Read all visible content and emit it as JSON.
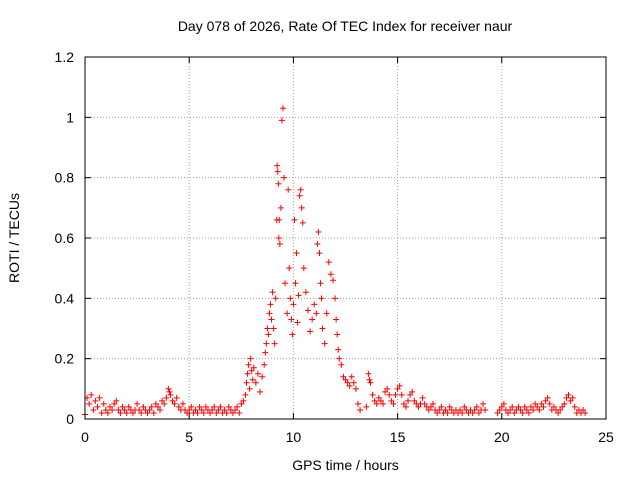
{
  "chart_data": {
    "type": "scatter",
    "title": "Day 078 of 2026, Rate Of TEC Index for receiver naur",
    "xlabel": "GPS time / hours",
    "ylabel": "ROTI / TECUs",
    "xlim": [
      0,
      25
    ],
    "ylim": [
      0,
      1.2
    ],
    "xticks": [
      0,
      5,
      10,
      15,
      20,
      25
    ],
    "yticks": [
      0,
      0.2,
      0.4,
      0.6,
      0.8,
      1,
      1.2
    ],
    "grid": true,
    "marker": "+",
    "color": "#ff0000",
    "series": [
      {
        "values": [
          [
            0.0,
            0.015
          ],
          [
            0.1,
            0.07
          ],
          [
            0.2,
            0.05
          ],
          [
            0.3,
            0.08
          ],
          [
            0.4,
            0.03
          ],
          [
            0.5,
            0.06
          ],
          [
            0.6,
            0.04
          ],
          [
            0.7,
            0.07
          ],
          [
            0.8,
            0.02
          ],
          [
            0.9,
            0.05
          ],
          [
            1.0,
            0.03
          ],
          [
            1.1,
            0.02
          ],
          [
            1.2,
            0.04
          ],
          [
            1.3,
            0.03
          ],
          [
            1.4,
            0.05
          ],
          [
            1.5,
            0.06
          ],
          [
            1.6,
            0.03
          ],
          [
            1.7,
            0.02
          ],
          [
            1.8,
            0.04
          ],
          [
            1.9,
            0.03
          ],
          [
            2.0,
            0.02
          ],
          [
            2.1,
            0.04
          ],
          [
            2.2,
            0.03
          ],
          [
            2.3,
            0.02
          ],
          [
            2.4,
            0.03
          ],
          [
            2.5,
            0.05
          ],
          [
            2.6,
            0.03
          ],
          [
            2.7,
            0.02
          ],
          [
            2.8,
            0.04
          ],
          [
            2.9,
            0.03
          ],
          [
            3.0,
            0.02
          ],
          [
            3.1,
            0.03
          ],
          [
            3.2,
            0.04
          ],
          [
            3.3,
            0.02
          ],
          [
            3.4,
            0.05
          ],
          [
            3.5,
            0.04
          ],
          [
            3.6,
            0.03
          ],
          [
            3.7,
            0.06
          ],
          [
            3.8,
            0.05
          ],
          [
            3.9,
            0.07
          ],
          [
            4.0,
            0.1
          ],
          [
            4.05,
            0.09
          ],
          [
            4.1,
            0.08
          ],
          [
            4.2,
            0.06
          ],
          [
            4.3,
            0.05
          ],
          [
            4.4,
            0.07
          ],
          [
            4.5,
            0.04
          ],
          [
            4.6,
            0.03
          ],
          [
            4.7,
            0.05
          ],
          [
            4.8,
            0.03
          ],
          [
            4.9,
            0.02
          ],
          [
            5.0,
            0.03
          ],
          [
            5.1,
            0.04
          ],
          [
            5.2,
            0.02
          ],
          [
            5.3,
            0.03
          ],
          [
            5.4,
            0.02
          ],
          [
            5.5,
            0.04
          ],
          [
            5.6,
            0.03
          ],
          [
            5.7,
            0.02
          ],
          [
            5.8,
            0.04
          ],
          [
            5.9,
            0.03
          ],
          [
            6.0,
            0.02
          ],
          [
            6.1,
            0.03
          ],
          [
            6.2,
            0.04
          ],
          [
            6.3,
            0.02
          ],
          [
            6.4,
            0.03
          ],
          [
            6.5,
            0.04
          ],
          [
            6.6,
            0.02
          ],
          [
            6.7,
            0.03
          ],
          [
            6.8,
            0.02
          ],
          [
            6.9,
            0.04
          ],
          [
            7.0,
            0.03
          ],
          [
            7.1,
            0.02
          ],
          [
            7.2,
            0.03
          ],
          [
            7.3,
            0.04
          ],
          [
            7.4,
            0.02
          ],
          [
            7.5,
            0.05
          ],
          [
            7.6,
            0.06
          ],
          [
            7.7,
            0.08
          ],
          [
            7.75,
            0.12
          ],
          [
            7.8,
            0.15
          ],
          [
            7.85,
            0.18
          ],
          [
            7.9,
            0.1
          ],
          [
            7.95,
            0.2
          ],
          [
            8.0,
            0.16
          ],
          [
            8.05,
            0.13
          ],
          [
            8.1,
            0.17
          ],
          [
            8.2,
            0.12
          ],
          [
            8.3,
            0.15
          ],
          [
            8.4,
            0.09
          ],
          [
            8.5,
            0.14
          ],
          [
            8.6,
            0.18
          ],
          [
            8.65,
            0.22
          ],
          [
            8.7,
            0.25
          ],
          [
            8.75,
            0.3
          ],
          [
            8.8,
            0.28
          ],
          [
            8.85,
            0.35
          ],
          [
            8.9,
            0.38
          ],
          [
            8.95,
            0.33
          ],
          [
            9.0,
            0.42
          ],
          [
            9.05,
            0.3
          ],
          [
            9.1,
            0.25
          ],
          [
            9.15,
            0.4
          ],
          [
            9.2,
            0.66
          ],
          [
            9.22,
            0.84
          ],
          [
            9.25,
            0.82
          ],
          [
            9.28,
            0.78
          ],
          [
            9.3,
            0.6
          ],
          [
            9.32,
            0.66
          ],
          [
            9.35,
            0.58
          ],
          [
            9.4,
            0.7
          ],
          [
            9.45,
            0.99
          ],
          [
            9.5,
            1.03
          ],
          [
            9.55,
            0.8
          ],
          [
            9.6,
            0.45
          ],
          [
            9.7,
            0.35
          ],
          [
            9.75,
            0.76
          ],
          [
            9.8,
            0.5
          ],
          [
            9.85,
            0.4
          ],
          [
            9.9,
            0.33
          ],
          [
            9.95,
            0.28
          ],
          [
            10.0,
            0.38
          ],
          [
            10.05,
            0.66
          ],
          [
            10.1,
            0.45
          ],
          [
            10.15,
            0.55
          ],
          [
            10.2,
            0.32
          ],
          [
            10.25,
            0.41
          ],
          [
            10.3,
            0.74
          ],
          [
            10.35,
            0.76
          ],
          [
            10.4,
            0.7
          ],
          [
            10.45,
            0.65
          ],
          [
            10.5,
            0.5
          ],
          [
            10.6,
            0.42
          ],
          [
            10.7,
            0.36
          ],
          [
            10.8,
            0.29
          ],
          [
            10.9,
            0.33
          ],
          [
            11.0,
            0.38
          ],
          [
            11.1,
            0.35
          ],
          [
            11.15,
            0.58
          ],
          [
            11.2,
            0.62
          ],
          [
            11.25,
            0.55
          ],
          [
            11.3,
            0.45
          ],
          [
            11.35,
            0.4
          ],
          [
            11.4,
            0.3
          ],
          [
            11.5,
            0.25
          ],
          [
            11.6,
            0.35
          ],
          [
            11.7,
            0.52
          ],
          [
            11.8,
            0.48
          ],
          [
            11.9,
            0.46
          ],
          [
            12.0,
            0.4
          ],
          [
            12.05,
            0.33
          ],
          [
            12.1,
            0.28
          ],
          [
            12.15,
            0.23
          ],
          [
            12.2,
            0.2
          ],
          [
            12.3,
            0.18
          ],
          [
            12.4,
            0.14
          ],
          [
            12.5,
            0.13
          ],
          [
            12.6,
            0.12
          ],
          [
            12.7,
            0.11
          ],
          [
            12.8,
            0.14
          ],
          [
            12.9,
            0.12
          ],
          [
            13.0,
            0.1
          ],
          [
            13.1,
            0.05
          ],
          [
            13.2,
            0.03
          ],
          [
            13.5,
            0.04
          ],
          [
            13.6,
            0.15
          ],
          [
            13.65,
            0.13
          ],
          [
            13.7,
            0.12
          ],
          [
            13.8,
            0.08
          ],
          [
            13.9,
            0.06
          ],
          [
            14.0,
            0.05
          ],
          [
            14.1,
            0.07
          ],
          [
            14.2,
            0.06
          ],
          [
            14.3,
            0.05
          ],
          [
            14.4,
            0.09
          ],
          [
            14.5,
            0.1
          ],
          [
            14.6,
            0.08
          ],
          [
            14.7,
            0.06
          ],
          [
            14.8,
            0.05
          ],
          [
            14.9,
            0.08
          ],
          [
            15.0,
            0.1
          ],
          [
            15.1,
            0.11
          ],
          [
            15.2,
            0.08
          ],
          [
            15.3,
            0.05
          ],
          [
            15.4,
            0.04
          ],
          [
            15.5,
            0.06
          ],
          [
            15.6,
            0.08
          ],
          [
            15.7,
            0.09
          ],
          [
            15.8,
            0.06
          ],
          [
            15.9,
            0.05
          ],
          [
            16.0,
            0.04
          ],
          [
            16.1,
            0.05
          ],
          [
            16.2,
            0.07
          ],
          [
            16.3,
            0.05
          ],
          [
            16.4,
            0.04
          ],
          [
            16.5,
            0.03
          ],
          [
            16.6,
            0.04
          ],
          [
            16.7,
            0.05
          ],
          [
            16.8,
            0.03
          ],
          [
            16.9,
            0.02
          ],
          [
            17.0,
            0.03
          ],
          [
            17.1,
            0.04
          ],
          [
            17.2,
            0.02
          ],
          [
            17.3,
            0.03
          ],
          [
            17.4,
            0.02
          ],
          [
            17.5,
            0.04
          ],
          [
            17.6,
            0.03
          ],
          [
            17.7,
            0.02
          ],
          [
            17.8,
            0.03
          ],
          [
            17.9,
            0.02
          ],
          [
            18.0,
            0.03
          ],
          [
            18.1,
            0.02
          ],
          [
            18.2,
            0.04
          ],
          [
            18.3,
            0.03
          ],
          [
            18.4,
            0.02
          ],
          [
            18.5,
            0.03
          ],
          [
            18.6,
            0.02
          ],
          [
            18.7,
            0.03
          ],
          [
            18.8,
            0.04
          ],
          [
            18.9,
            0.02
          ],
          [
            19.0,
            0.03
          ],
          [
            19.1,
            0.05
          ],
          [
            19.2,
            0.03
          ],
          [
            19.8,
            0.02
          ],
          [
            19.9,
            0.03
          ],
          [
            20.0,
            0.04
          ],
          [
            20.1,
            0.05
          ],
          [
            20.2,
            0.03
          ],
          [
            20.3,
            0.02
          ],
          [
            20.4,
            0.03
          ],
          [
            20.5,
            0.04
          ],
          [
            20.6,
            0.02
          ],
          [
            20.7,
            0.03
          ],
          [
            20.8,
            0.04
          ],
          [
            20.9,
            0.03
          ],
          [
            21.0,
            0.02
          ],
          [
            21.1,
            0.04
          ],
          [
            21.2,
            0.03
          ],
          [
            21.3,
            0.02
          ],
          [
            21.4,
            0.04
          ],
          [
            21.5,
            0.03
          ],
          [
            21.6,
            0.05
          ],
          [
            21.7,
            0.04
          ],
          [
            21.8,
            0.03
          ],
          [
            21.9,
            0.05
          ],
          [
            22.0,
            0.04
          ],
          [
            22.1,
            0.06
          ],
          [
            22.2,
            0.07
          ],
          [
            22.3,
            0.05
          ],
          [
            22.4,
            0.03
          ],
          [
            22.5,
            0.04
          ],
          [
            22.6,
            0.03
          ],
          [
            22.7,
            0.02
          ],
          [
            22.8,
            0.03
          ],
          [
            22.9,
            0.04
          ],
          [
            23.0,
            0.05
          ],
          [
            23.1,
            0.07
          ],
          [
            23.2,
            0.08
          ],
          [
            23.3,
            0.06
          ],
          [
            23.4,
            0.07
          ],
          [
            23.5,
            0.04
          ],
          [
            23.6,
            0.02
          ],
          [
            23.7,
            0.03
          ],
          [
            23.8,
            0.02
          ],
          [
            23.9,
            0.03
          ],
          [
            24.0,
            0.02
          ]
        ]
      }
    ]
  }
}
